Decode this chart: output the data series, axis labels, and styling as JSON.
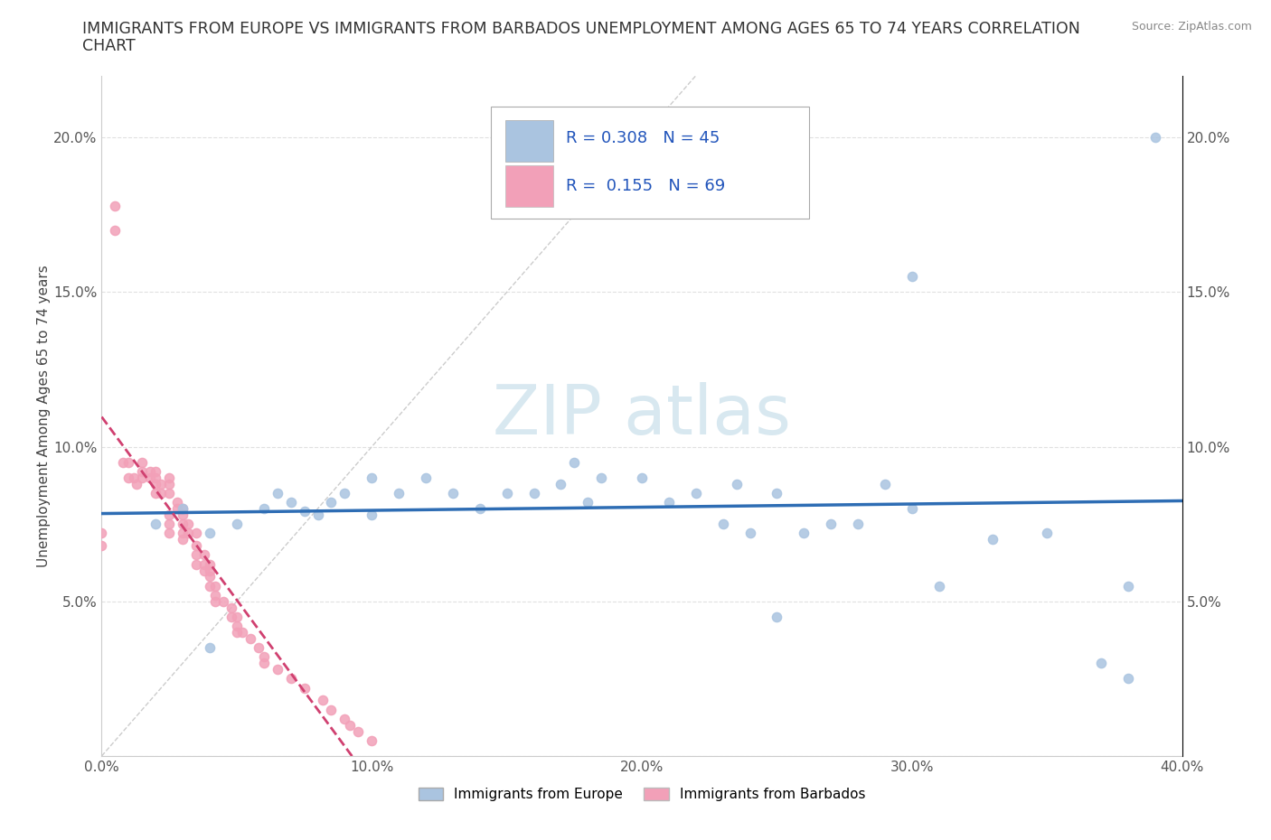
{
  "title_line1": "IMMIGRANTS FROM EUROPE VS IMMIGRANTS FROM BARBADOS UNEMPLOYMENT AMONG AGES 65 TO 74 YEARS CORRELATION",
  "title_line2": "CHART",
  "source": "Source: ZipAtlas.com",
  "ylabel": "Unemployment Among Ages 65 to 74 years",
  "xlim": [
    0.0,
    0.4
  ],
  "ylim": [
    0.0,
    0.22
  ],
  "xticks": [
    0.0,
    0.1,
    0.2,
    0.3,
    0.4
  ],
  "xtick_labels": [
    "0.0%",
    "10.0%",
    "20.0%",
    "30.0%",
    "40.0%"
  ],
  "yticks": [
    0.0,
    0.05,
    0.1,
    0.15,
    0.2
  ],
  "ytick_labels": [
    "",
    "5.0%",
    "10.0%",
    "15.0%",
    "20.0%"
  ],
  "europe_R": 0.308,
  "europe_N": 45,
  "barbados_R": 0.155,
  "barbados_N": 69,
  "europe_color": "#aac4e0",
  "barbados_color": "#f2a0b8",
  "europe_line_color": "#2e6db4",
  "barbados_line_color": "#d04070",
  "europe_x": [
    0.02,
    0.03,
    0.04,
    0.05,
    0.06,
    0.065,
    0.07,
    0.075,
    0.08,
    0.085,
    0.09,
    0.1,
    0.1,
    0.11,
    0.12,
    0.13,
    0.14,
    0.15,
    0.16,
    0.17,
    0.175,
    0.18,
    0.185,
    0.2,
    0.21,
    0.22,
    0.23,
    0.235,
    0.24,
    0.25,
    0.26,
    0.27,
    0.28,
    0.29,
    0.3,
    0.31,
    0.33,
    0.35,
    0.37,
    0.38,
    0.04,
    0.25,
    0.3,
    0.38,
    0.39
  ],
  "europe_y": [
    0.075,
    0.08,
    0.072,
    0.075,
    0.08,
    0.085,
    0.082,
    0.079,
    0.078,
    0.082,
    0.085,
    0.078,
    0.09,
    0.085,
    0.09,
    0.085,
    0.08,
    0.085,
    0.085,
    0.088,
    0.095,
    0.082,
    0.09,
    0.09,
    0.082,
    0.085,
    0.075,
    0.088,
    0.072,
    0.085,
    0.072,
    0.075,
    0.075,
    0.088,
    0.08,
    0.055,
    0.07,
    0.072,
    0.03,
    0.025,
    0.035,
    0.045,
    0.155,
    0.055,
    0.2
  ],
  "barbados_x": [
    0.0,
    0.0,
    0.005,
    0.005,
    0.008,
    0.01,
    0.01,
    0.012,
    0.013,
    0.015,
    0.015,
    0.015,
    0.018,
    0.018,
    0.02,
    0.02,
    0.02,
    0.02,
    0.022,
    0.022,
    0.025,
    0.025,
    0.025,
    0.025,
    0.025,
    0.025,
    0.028,
    0.028,
    0.03,
    0.03,
    0.03,
    0.03,
    0.03,
    0.032,
    0.032,
    0.035,
    0.035,
    0.035,
    0.035,
    0.038,
    0.038,
    0.038,
    0.04,
    0.04,
    0.04,
    0.04,
    0.042,
    0.042,
    0.042,
    0.045,
    0.048,
    0.048,
    0.05,
    0.05,
    0.05,
    0.052,
    0.055,
    0.058,
    0.06,
    0.06,
    0.065,
    0.07,
    0.075,
    0.082,
    0.085,
    0.09,
    0.092,
    0.095,
    0.1
  ],
  "barbados_y": [
    0.068,
    0.072,
    0.17,
    0.178,
    0.095,
    0.09,
    0.095,
    0.09,
    0.088,
    0.09,
    0.092,
    0.095,
    0.09,
    0.092,
    0.09,
    0.085,
    0.088,
    0.092,
    0.085,
    0.088,
    0.085,
    0.088,
    0.09,
    0.072,
    0.075,
    0.078,
    0.082,
    0.08,
    0.08,
    0.078,
    0.075,
    0.072,
    0.07,
    0.075,
    0.072,
    0.072,
    0.068,
    0.065,
    0.062,
    0.065,
    0.062,
    0.06,
    0.062,
    0.058,
    0.06,
    0.055,
    0.055,
    0.052,
    0.05,
    0.05,
    0.048,
    0.045,
    0.045,
    0.042,
    0.04,
    0.04,
    0.038,
    0.035,
    0.032,
    0.03,
    0.028,
    0.025,
    0.022,
    0.018,
    0.015,
    0.012,
    0.01,
    0.008,
    0.005
  ],
  "diag_color": "#cccccc",
  "watermark_color": "#d8e8f0",
  "legend_box_color": "#ffffff",
  "legend_text_color": "#2255bb",
  "grid_color": "#e0e0e0",
  "bottom_legend_items": [
    "Immigrants from Europe",
    "Immigrants from Barbados"
  ]
}
